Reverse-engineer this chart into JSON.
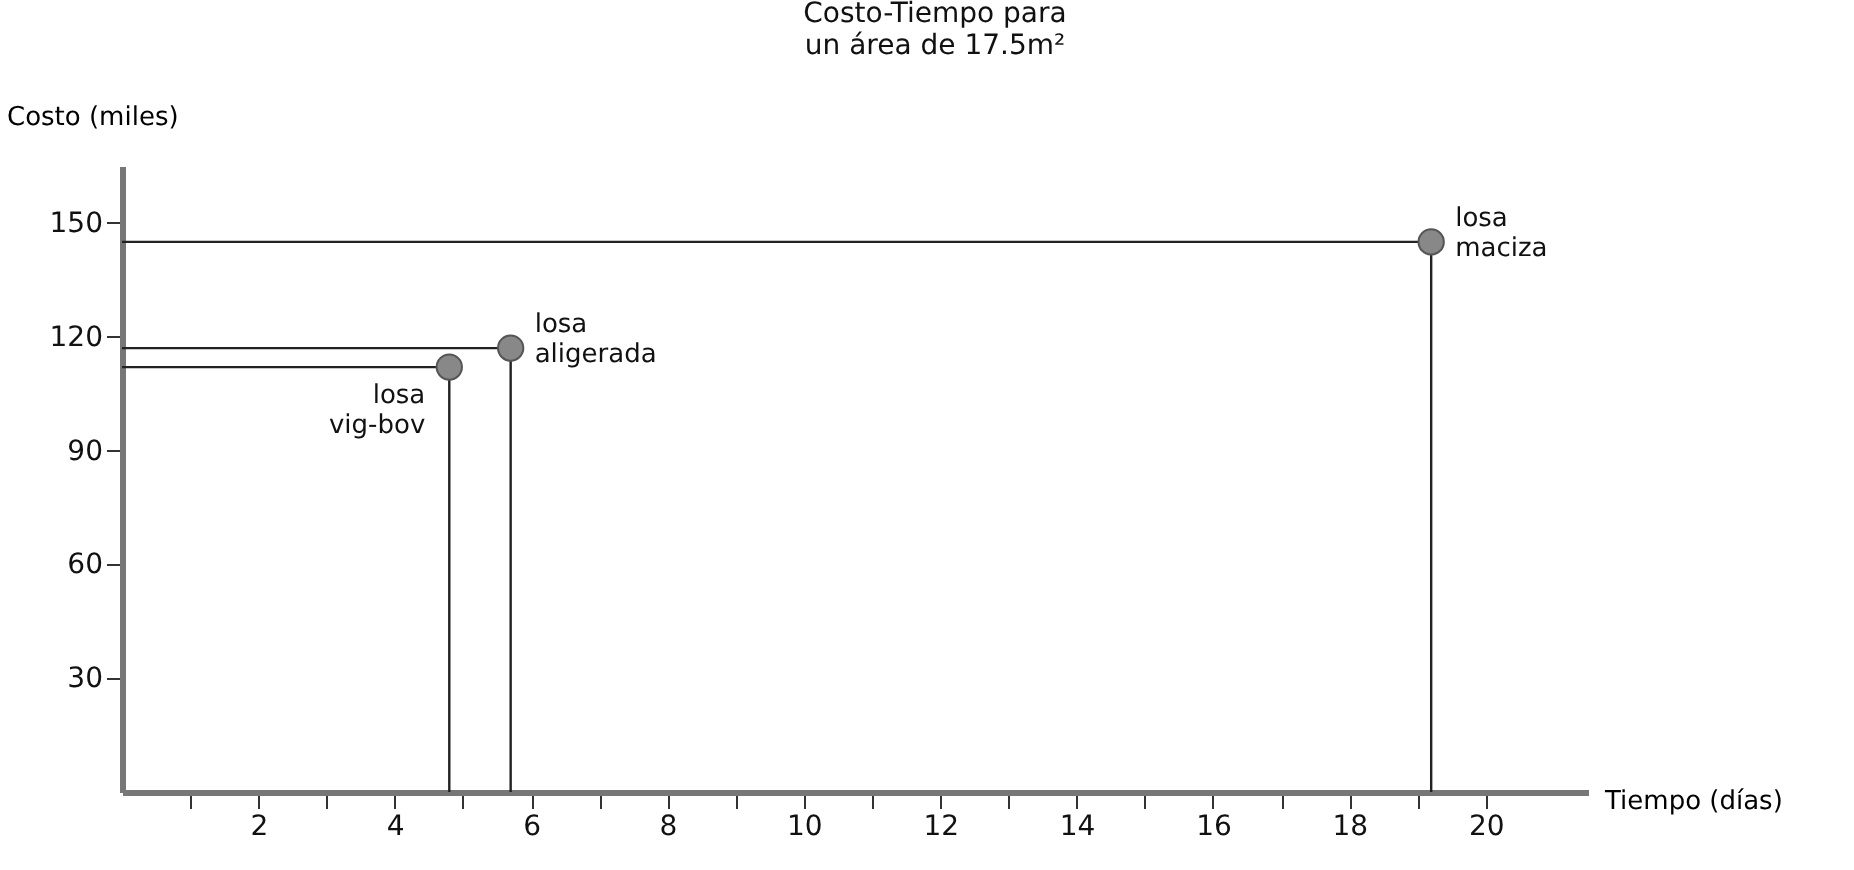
{
  "chart_data": {
    "type": "scatter",
    "title": "Costo-Tiempo para\nun área de 17.5m²",
    "xlabel": "Tiempo (días)",
    "ylabel": "Costo (miles)",
    "x": [
      4.8,
      5.7,
      19.2
    ],
    "series": [
      {
        "type": "line",
        "marker": "none",
        "color": "#222222",
        "x": [
          0,
          4.8,
          4.8
        ],
        "values": [
          112,
          112,
          0
        ]
      },
      {
        "type": "line",
        "marker": "none",
        "color": "#222222",
        "x": [
          0,
          5.7,
          5.7
        ],
        "values": [
          117,
          117,
          0
        ]
      },
      {
        "type": "line",
        "marker": "none",
        "color": "#222222",
        "x": [
          0,
          19.2,
          19.2
        ],
        "values": [
          145,
          145,
          0
        ]
      },
      {
        "color": "#888888",
        "values": [
          112,
          117,
          145
        ]
      }
    ],
    "marker": "circle",
    "grid": false,
    "xlim": [
      0,
      21.5
    ],
    "ylim": [
      0,
      165
    ],
    "xticks": [
      {
        "value": 1,
        "label": null
      },
      2,
      {
        "value": 3,
        "label": null
      },
      4,
      {
        "value": 5,
        "label": null
      },
      6,
      {
        "value": 7,
        "label": null
      },
      8,
      {
        "value": 9,
        "label": null
      },
      10,
      {
        "value": 11,
        "label": null
      },
      12,
      {
        "value": 13,
        "label": null
      },
      14,
      {
        "value": 15,
        "label": null
      },
      16,
      {
        "value": 17,
        "label": null
      },
      18,
      {
        "value": 19,
        "label": null
      },
      20
    ],
    "yticks": [
      30,
      60,
      90,
      120,
      150
    ],
    "annotations": [
      {
        "text": "losa\nvig-bov",
        "x": 4.8,
        "y": 112
      },
      {
        "text": "losa\naligerada",
        "x": 5.7,
        "y": 117
      },
      {
        "text": "losa\nmaciza",
        "x": 19.2,
        "y": 145
      }
    ]
  }
}
